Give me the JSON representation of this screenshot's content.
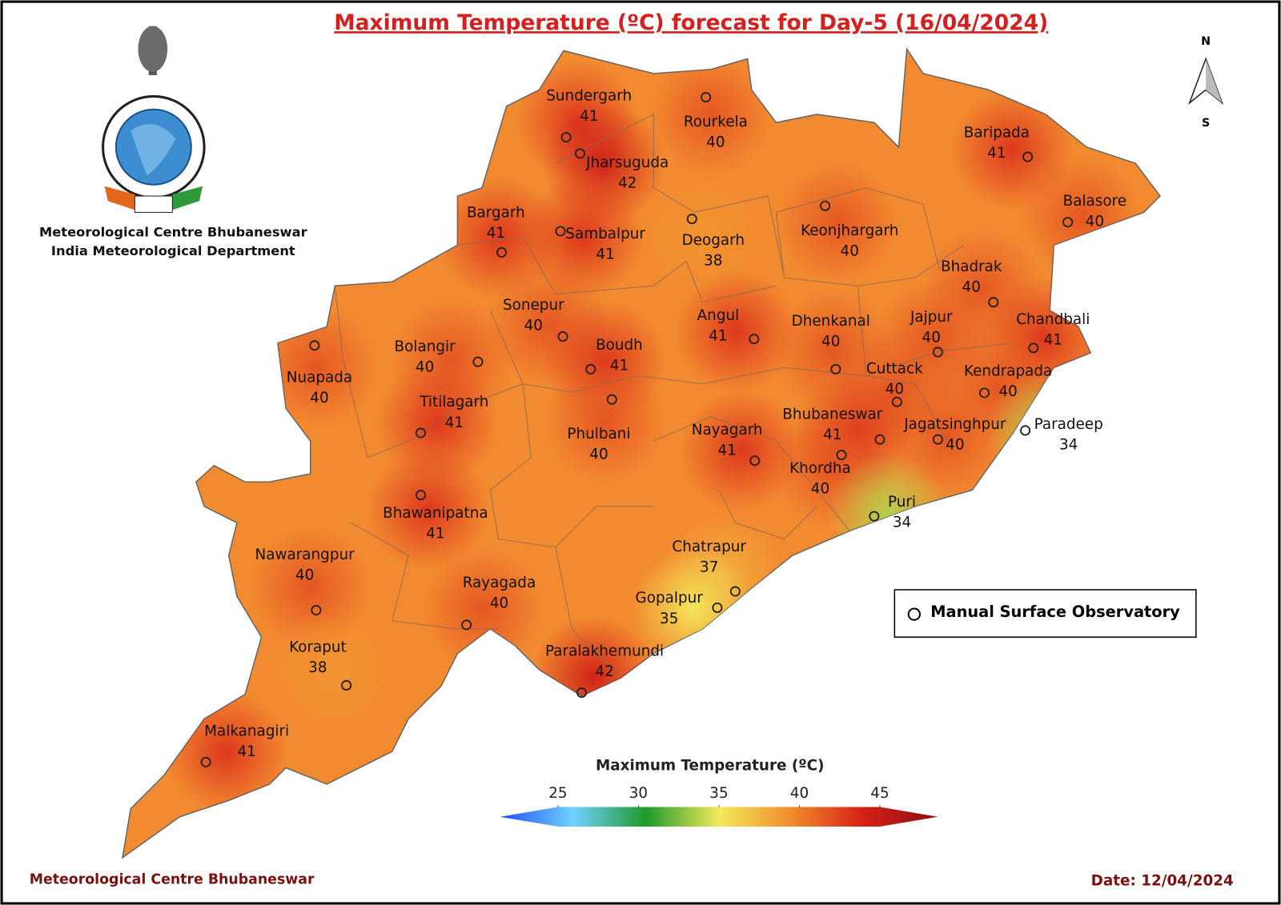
{
  "header": {
    "title": "Maximum Temperature (ºC) forecast for Day-5 (16/04/2024)",
    "org_line1": "Meteorological Centre Bhubaneswar",
    "org_line2": "India Meteorological Department"
  },
  "compass": {
    "north": "N",
    "south": "S"
  },
  "stations": [
    {
      "name": "Sundergarh",
      "value": 41
    },
    {
      "name": "Jharsuguda",
      "value": 42
    },
    {
      "name": "Rourkela",
      "value": 40
    },
    {
      "name": "Baripada",
      "value": 41
    },
    {
      "name": "Balasore",
      "value": 40
    },
    {
      "name": "Bargarh",
      "value": 41
    },
    {
      "name": "Sambalpur",
      "value": 41
    },
    {
      "name": "Deogarh",
      "value": 38
    },
    {
      "name": "Keonjhargarh",
      "value": 40
    },
    {
      "name": "Bhadrak",
      "value": 40
    },
    {
      "name": "Sonepur",
      "value": 40
    },
    {
      "name": "Angul",
      "value": 41
    },
    {
      "name": "Dhenkanal",
      "value": 40
    },
    {
      "name": "Jajpur",
      "value": 40
    },
    {
      "name": "Chandbali",
      "value": 41
    },
    {
      "name": "Bolangir",
      "value": 40
    },
    {
      "name": "Boudh",
      "value": 41
    },
    {
      "name": "Nuapada",
      "value": 40
    },
    {
      "name": "Cuttack",
      "value": 40
    },
    {
      "name": "Kendrapada",
      "value": 40
    },
    {
      "name": "Titilagarh",
      "value": 41
    },
    {
      "name": "Phulbani",
      "value": 40
    },
    {
      "name": "Nayagarh",
      "value": 41
    },
    {
      "name": "Bhubaneswar",
      "value": 41
    },
    {
      "name": "Jagatsinghpur",
      "value": 40
    },
    {
      "name": "Paradeep",
      "value": 34
    },
    {
      "name": "Khordha",
      "value": 40
    },
    {
      "name": "Bhawanipatna",
      "value": 41
    },
    {
      "name": "Puri",
      "value": 34
    },
    {
      "name": "Chatrapur",
      "value": 37
    },
    {
      "name": "Nawarangpur",
      "value": 40
    },
    {
      "name": "Rayagada",
      "value": 40
    },
    {
      "name": "Gopalpur",
      "value": 35
    },
    {
      "name": "Paralakhemundi",
      "value": 42
    },
    {
      "name": "Koraput",
      "value": 38
    },
    {
      "name": "Malkanagiri",
      "value": 41
    }
  ],
  "legend": {
    "label": "Manual Surface Observatory"
  },
  "colorbar": {
    "title": "Maximum Temperature (ºC)",
    "ticks": [
      25,
      30,
      35,
      40,
      45
    ],
    "colors": [
      "#1f4dff",
      "#6fd2ff",
      "#1f9a2a",
      "#f3ea5a",
      "#f28a2c",
      "#d61e18",
      "#8a1010"
    ]
  },
  "footer": {
    "left": "Meteorological Centre Bhubaneswar",
    "right": "Date: 12/04/2024"
  }
}
